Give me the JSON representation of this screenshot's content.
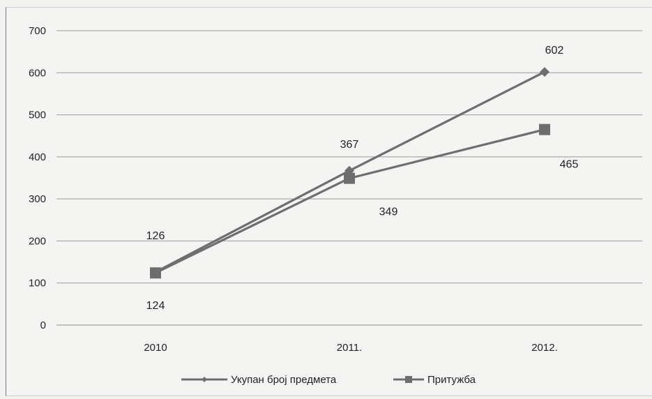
{
  "chart_data": {
    "type": "line",
    "categories": [
      "2010",
      "2011.",
      "2012."
    ],
    "ylim": [
      0,
      700
    ],
    "yticks": [
      0,
      100,
      200,
      300,
      400,
      500,
      600,
      700
    ],
    "grid": true,
    "legend_position": "bottom",
    "series": [
      {
        "name": "Укупан број предмета",
        "marker": "diamond",
        "color": "#6e6e6e",
        "values": [
          126,
          367,
          602
        ],
        "labels": [
          "126",
          "367",
          "602"
        ],
        "label_position": "above"
      },
      {
        "name": "Притужба",
        "marker": "square",
        "color": "#6e6e6e",
        "values": [
          124,
          349,
          465
        ],
        "labels": [
          "124",
          "349",
          "465"
        ],
        "label_position": "below"
      }
    ]
  }
}
